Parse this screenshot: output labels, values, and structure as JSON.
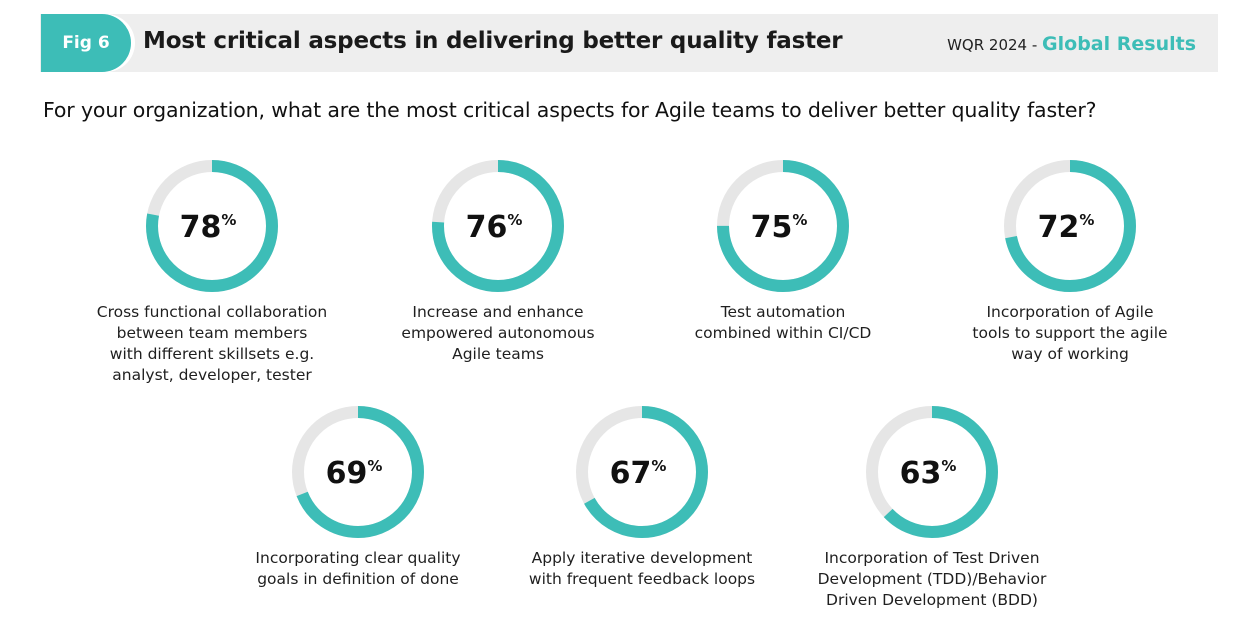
{
  "header": {
    "fig_label": "Fig 6",
    "title": "Most critical aspects in delivering better quality faster",
    "report_prefix": "WQR 2024 - ",
    "report_accent": "Global Results"
  },
  "question": "For your organization, what are the most critical aspects for Agile teams to deliver better quality faster?",
  "colors": {
    "accent": "#3dbdb7",
    "track": "#e6e6e6",
    "header_bg": "#eeeeee"
  },
  "chart_data": {
    "type": "donut",
    "title": "Most critical aspects in delivering better quality faster",
    "unit": "%",
    "max": 100,
    "items": [
      {
        "value": 78,
        "label_lines": [
          "Cross functional collaboration",
          "between team members",
          "with different skillsets e.g.",
          "analyst, developer, tester"
        ]
      },
      {
        "value": 76,
        "label_lines": [
          "Increase and enhance",
          "empowered autonomous",
          "Agile teams"
        ]
      },
      {
        "value": 75,
        "label_lines": [
          "Test automation",
          "combined within CI/CD"
        ]
      },
      {
        "value": 72,
        "label_lines": [
          "Incorporation of Agile",
          "tools to support the agile",
          "way of working"
        ]
      },
      {
        "value": 69,
        "label_lines": [
          "Incorporating clear quality",
          "goals in definition of done"
        ]
      },
      {
        "value": 67,
        "label_lines": [
          "Apply iterative development",
          "with frequent feedback loops"
        ]
      },
      {
        "value": 63,
        "label_lines": [
          "Incorporation of Test Driven",
          "Development (TDD)/Behavior",
          "Driven Development (BDD)"
        ]
      }
    ]
  }
}
